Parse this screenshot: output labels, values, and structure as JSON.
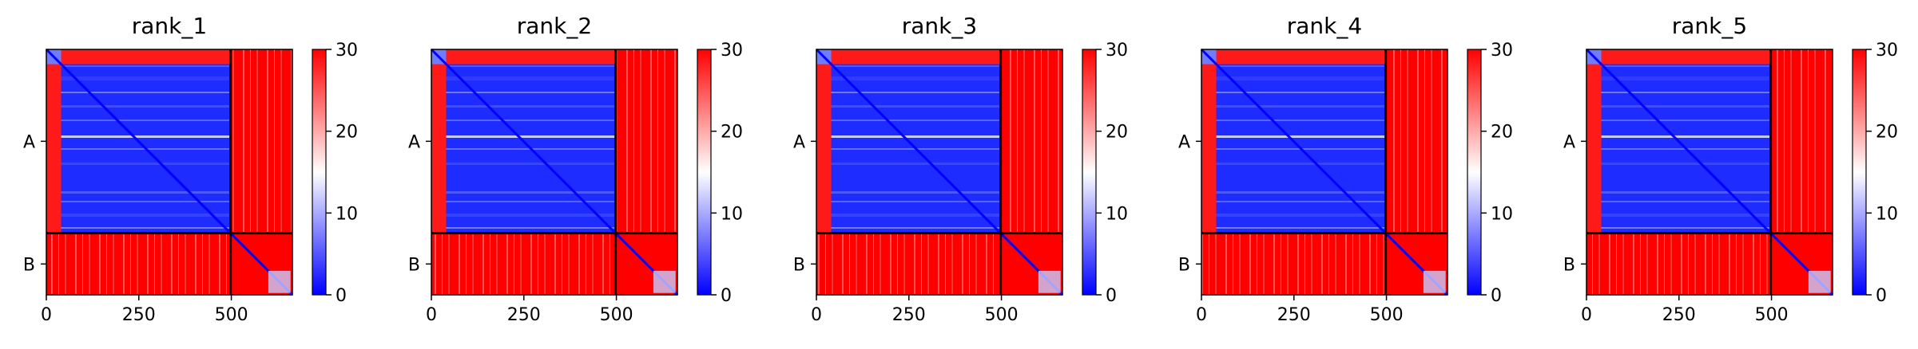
{
  "figure": {
    "background": "#ffffff"
  },
  "chart_data": [
    {
      "type": "heatmap",
      "title": "rank_1",
      "x_ticks": [
        0,
        250,
        500
      ],
      "x_range": [
        0,
        665
      ],
      "y_tick_labels": [
        "A",
        "B"
      ],
      "chain_boundary": 498,
      "colorbar": {
        "range": [
          0,
          30
        ],
        "ticks": [
          0,
          10,
          20,
          30
        ],
        "cmap": [
          "#0000ff",
          "#ffffff",
          "#ff0000"
        ]
      },
      "grid": false
    },
    {
      "type": "heatmap",
      "title": "rank_2",
      "x_ticks": [
        0,
        250,
        500
      ],
      "x_range": [
        0,
        665
      ],
      "y_tick_labels": [
        "A",
        "B"
      ],
      "chain_boundary": 498,
      "colorbar": {
        "range": [
          0,
          30
        ],
        "ticks": [
          0,
          10,
          20,
          30
        ],
        "cmap": [
          "#0000ff",
          "#ffffff",
          "#ff0000"
        ]
      },
      "grid": false
    },
    {
      "type": "heatmap",
      "title": "rank_3",
      "x_ticks": [
        0,
        250,
        500
      ],
      "x_range": [
        0,
        665
      ],
      "y_tick_labels": [
        "A",
        "B"
      ],
      "chain_boundary": 498,
      "colorbar": {
        "range": [
          0,
          30
        ],
        "ticks": [
          0,
          10,
          20,
          30
        ],
        "cmap": [
          "#0000ff",
          "#ffffff",
          "#ff0000"
        ]
      },
      "grid": false
    },
    {
      "type": "heatmap",
      "title": "rank_4",
      "x_ticks": [
        0,
        250,
        500
      ],
      "x_range": [
        0,
        665
      ],
      "y_tick_labels": [
        "A",
        "B"
      ],
      "chain_boundary": 498,
      "colorbar": {
        "range": [
          0,
          30
        ],
        "ticks": [
          0,
          10,
          20,
          30
        ],
        "cmap": [
          "#0000ff",
          "#ffffff",
          "#ff0000"
        ]
      },
      "grid": false
    },
    {
      "type": "heatmap",
      "title": "rank_5",
      "x_ticks": [
        0,
        250,
        500
      ],
      "x_range": [
        0,
        665
      ],
      "y_tick_labels": [
        "A",
        "B"
      ],
      "chain_boundary": 498,
      "colorbar": {
        "range": [
          0,
          30
        ],
        "ticks": [
          0,
          10,
          20,
          30
        ],
        "cmap": [
          "#0000ff",
          "#ffffff",
          "#ff0000"
        ]
      },
      "grid": false
    }
  ]
}
